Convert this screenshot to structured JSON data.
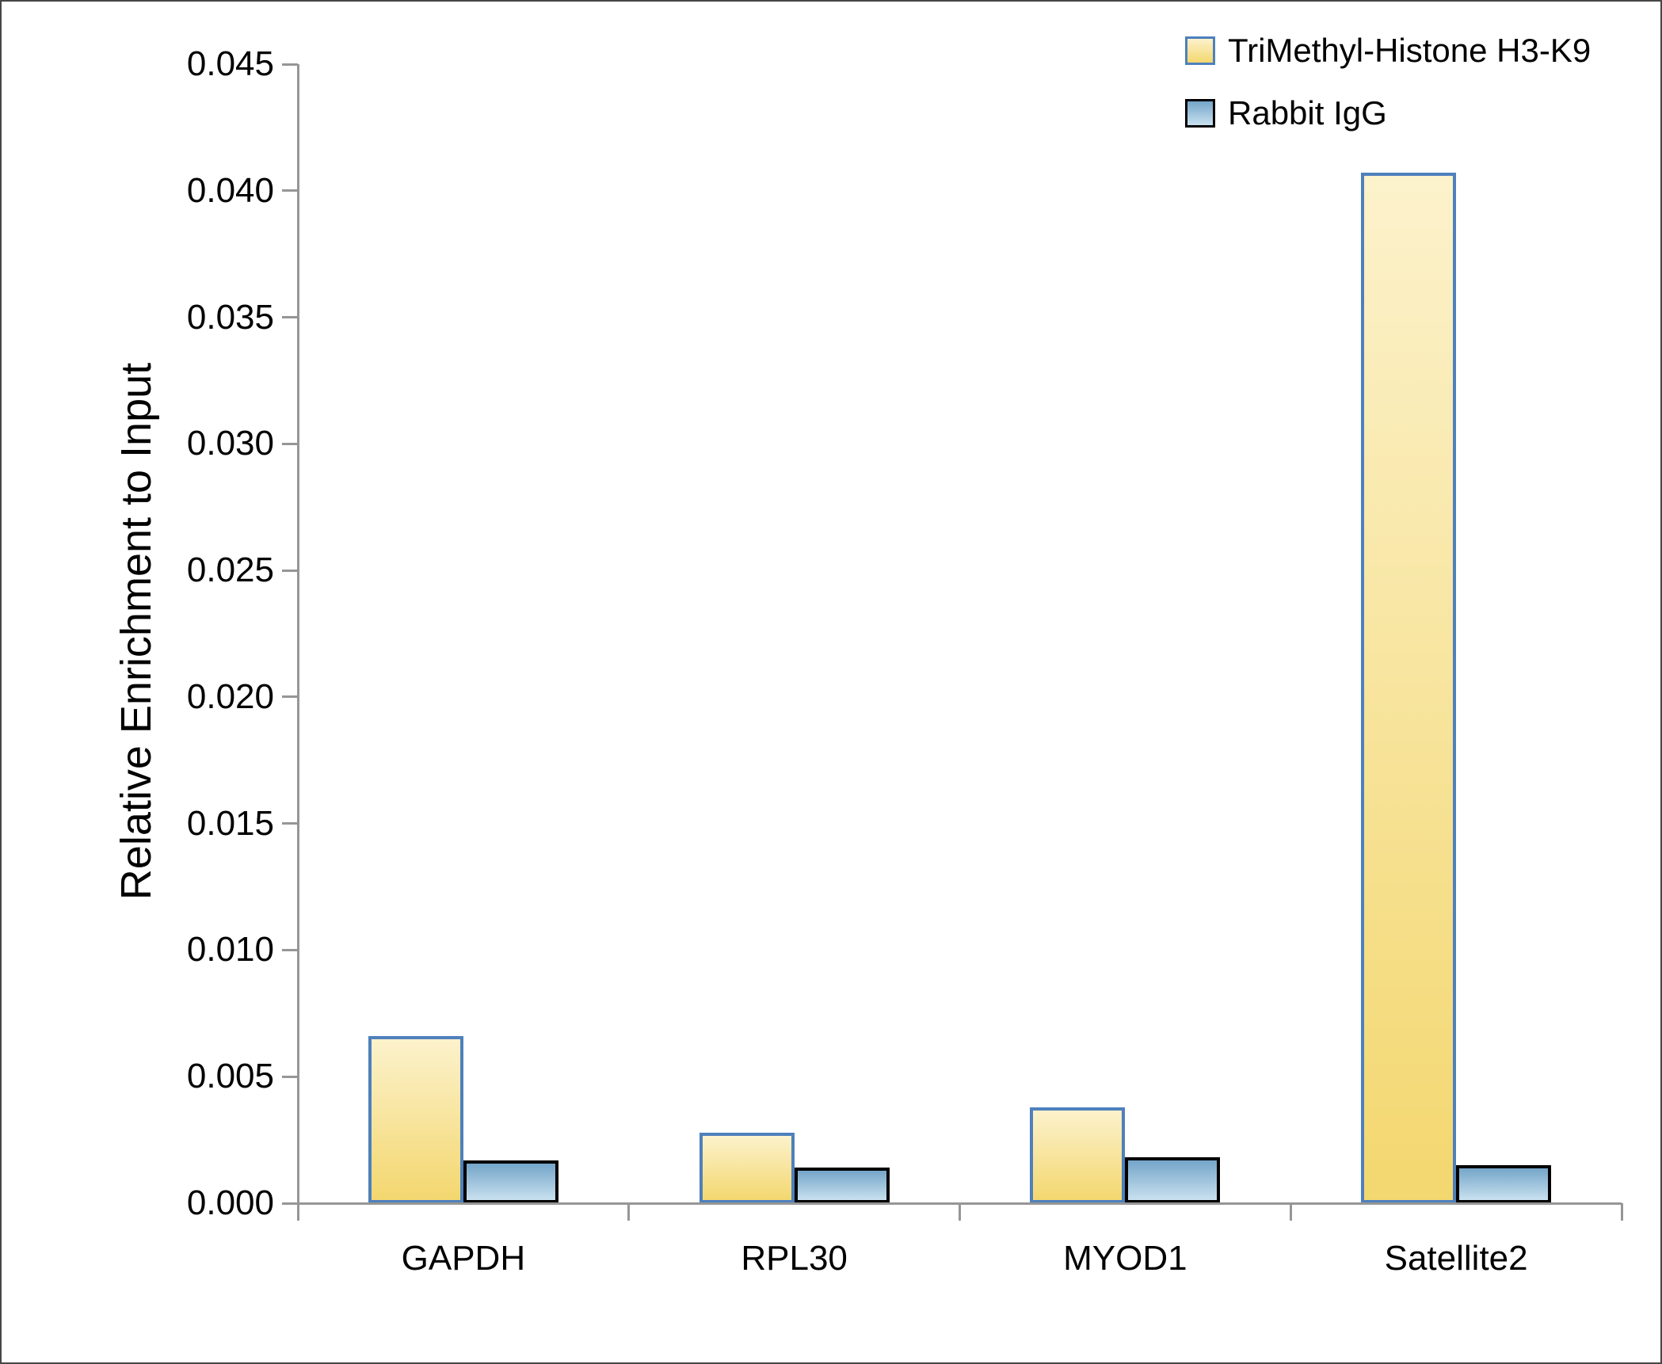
{
  "chart_data": {
    "type": "bar",
    "title": "",
    "ylabel": "Relative Enrichment to Input",
    "xlabel": "",
    "categories": [
      "GAPDH",
      "RPL30",
      "MYOD1",
      "Satellite2"
    ],
    "series": [
      {
        "name": "TriMethyl-Histone H3-K9",
        "values": [
          0.0066,
          0.0028,
          0.0038,
          0.0407
        ],
        "fill_top": "#FCF2CC",
        "fill_bottom": "#F3D76F",
        "border_color": "#4E80BC"
      },
      {
        "name": "Rabbit IgG",
        "values": [
          0.0017,
          0.0014,
          0.0018,
          0.0015
        ],
        "fill_top": "#74A5C9",
        "fill_bottom": "#C9E1EF",
        "border_color": "#000000"
      }
    ],
    "ylim": [
      0,
      0.045
    ],
    "ytick_step": 0.005,
    "ytick_decimals": 3,
    "grid": false,
    "legend_position": "top-right",
    "axis_color": "#969696",
    "text_color": "#000000"
  }
}
